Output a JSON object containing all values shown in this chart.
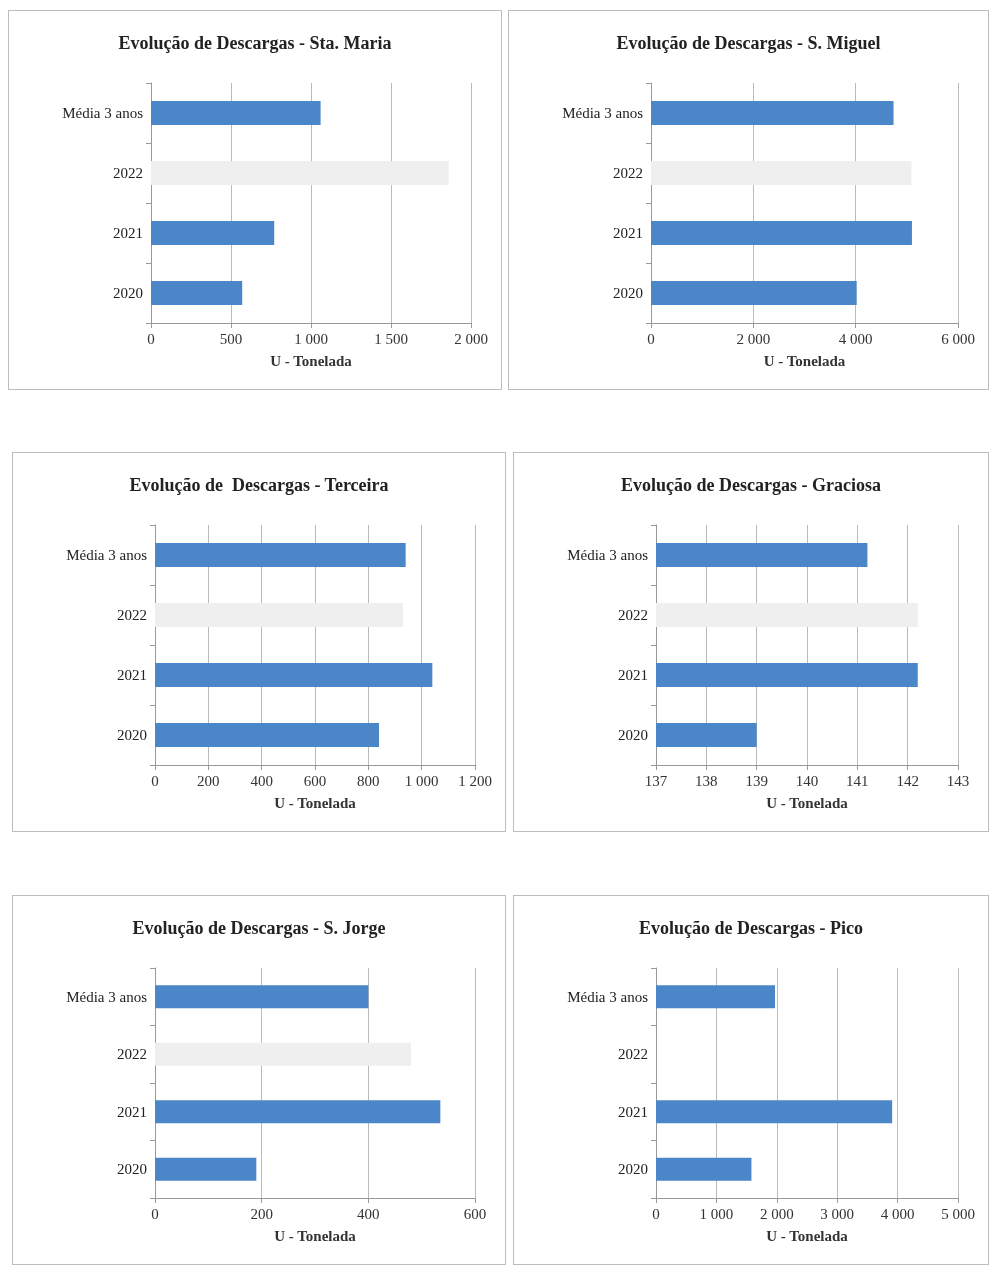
{
  "chart_data": [
    {
      "type": "bar",
      "orientation": "horizontal",
      "title": "Evolução de Descargas - Sta. Maria",
      "xlabel": "U - Tonelada",
      "categories": [
        "Média 3 anos",
        "2022",
        "2021",
        "2020"
      ],
      "values": [
        1060,
        1860,
        770,
        570
      ],
      "colors": [
        "#4a86c8",
        "#efefef",
        "#4a86c8",
        "#4a86c8"
      ],
      "xlim": [
        0,
        2000
      ],
      "xticks": [
        0,
        500,
        {
          "value": 1000,
          "label": "1 000"
        },
        {
          "value": 1500,
          "label": "1 500"
        },
        {
          "value": 2000,
          "label": "2 000"
        }
      ],
      "grid": "x"
    },
    {
      "type": "bar",
      "orientation": "horizontal",
      "title": "Evolução de Descargas - S. Miguel",
      "xlabel": "U - Tonelada",
      "categories": [
        "Média 3 anos",
        "2022",
        "2021",
        "2020"
      ],
      "values": [
        4740,
        5090,
        5100,
        4020
      ],
      "colors": [
        "#4a86c8",
        "#efefef",
        "#4a86c8",
        "#4a86c8"
      ],
      "xlim": [
        0,
        6000
      ],
      "xticks": [
        0,
        {
          "value": 2000,
          "label": "2 000"
        },
        {
          "value": 4000,
          "label": "4 000"
        },
        {
          "value": 6000,
          "label": "6 000"
        }
      ],
      "grid": "x"
    },
    {
      "type": "bar",
      "orientation": "horizontal",
      "title": "Evolução de  Descargas - Terceira",
      "xlabel": "U - Tonelada",
      "categories": [
        "Média 3 anos",
        "2022",
        "2021",
        "2020"
      ],
      "values": [
        940,
        930,
        1040,
        840
      ],
      "colors": [
        "#4a86c8",
        "#efefef",
        "#4a86c8",
        "#4a86c8"
      ],
      "xlim": [
        0,
        1200
      ],
      "xticks": [
        0,
        200,
        400,
        600,
        800,
        {
          "value": 1000,
          "label": "1 000"
        },
        {
          "value": 1200,
          "label": "1 200"
        }
      ],
      "grid": "x"
    },
    {
      "type": "bar",
      "orientation": "horizontal",
      "title": "Evolução de Descargas - Graciosa",
      "xlabel": "U - Tonelada",
      "categories": [
        "Média 3 anos",
        "2022",
        "2021",
        "2020"
      ],
      "values": [
        141.2,
        142.2,
        142.2,
        139.0
      ],
      "colors": [
        "#4a86c8",
        "#efefef",
        "#4a86c8",
        "#4a86c8"
      ],
      "xlim": [
        137,
        143
      ],
      "xticks": [
        137,
        138,
        139,
        140,
        141,
        142,
        143
      ],
      "grid": "x"
    },
    {
      "type": "bar",
      "orientation": "horizontal",
      "title": "Evolução de Descargas - S. Jorge",
      "xlabel": "U - Tonelada",
      "categories": [
        "Média 3 anos",
        "2022",
        "2021",
        "2020"
      ],
      "values": [
        400,
        480,
        535,
        190
      ],
      "colors": [
        "#4a86c8",
        "#efefef",
        "#4a86c8",
        "#4a86c8"
      ],
      "xlim": [
        0,
        600
      ],
      "xticks": [
        0,
        200,
        400,
        600
      ],
      "grid": "x"
    },
    {
      "type": "bar",
      "orientation": "horizontal",
      "title": "Evolução de Descargas - Pico",
      "xlabel": "U - Tonelada",
      "categories": [
        "Média 3 anos",
        "2022",
        "2021",
        "2020"
      ],
      "values": [
        1970,
        null,
        3910,
        1580
      ],
      "colors": [
        "#4a86c8",
        "#efefef",
        "#4a86c8",
        "#4a86c8"
      ],
      "xlim": [
        0,
        5000
      ],
      "xticks": [
        0,
        {
          "value": 1000,
          "label": "1 000"
        },
        {
          "value": 2000,
          "label": "2 000"
        },
        {
          "value": 3000,
          "label": "3 000"
        },
        {
          "value": 4000,
          "label": "4 000"
        },
        {
          "value": 5000,
          "label": "5 000"
        }
      ],
      "grid": "x"
    }
  ]
}
